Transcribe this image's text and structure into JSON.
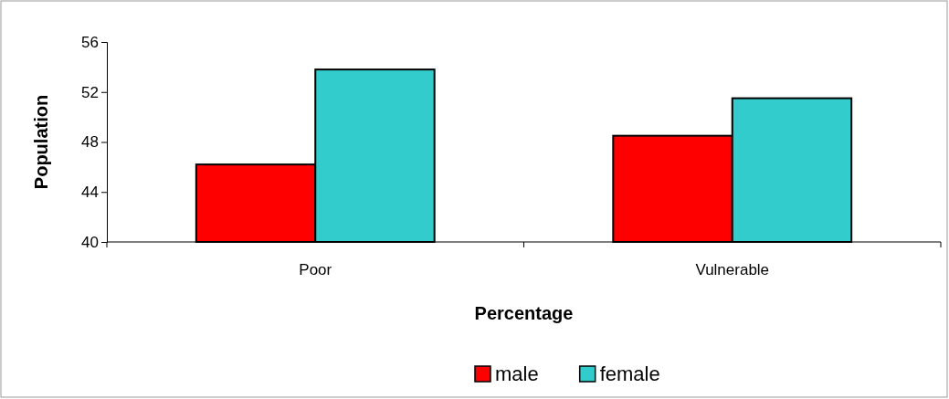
{
  "chart_data": {
    "type": "bar",
    "xlabel": "Percentage",
    "ylabel": "Population",
    "categories": [
      "Poor",
      "Vulnerable"
    ],
    "series": [
      {
        "name": "male",
        "color": "#ff0000",
        "values": [
          46.2,
          48.5
        ]
      },
      {
        "name": "female",
        "color": "#33cccc",
        "values": [
          53.8,
          51.5
        ]
      }
    ],
    "ylim": [
      40,
      56
    ],
    "yticks": [
      40,
      44,
      48,
      52,
      56
    ],
    "grid": false,
    "legend": "bottom"
  }
}
